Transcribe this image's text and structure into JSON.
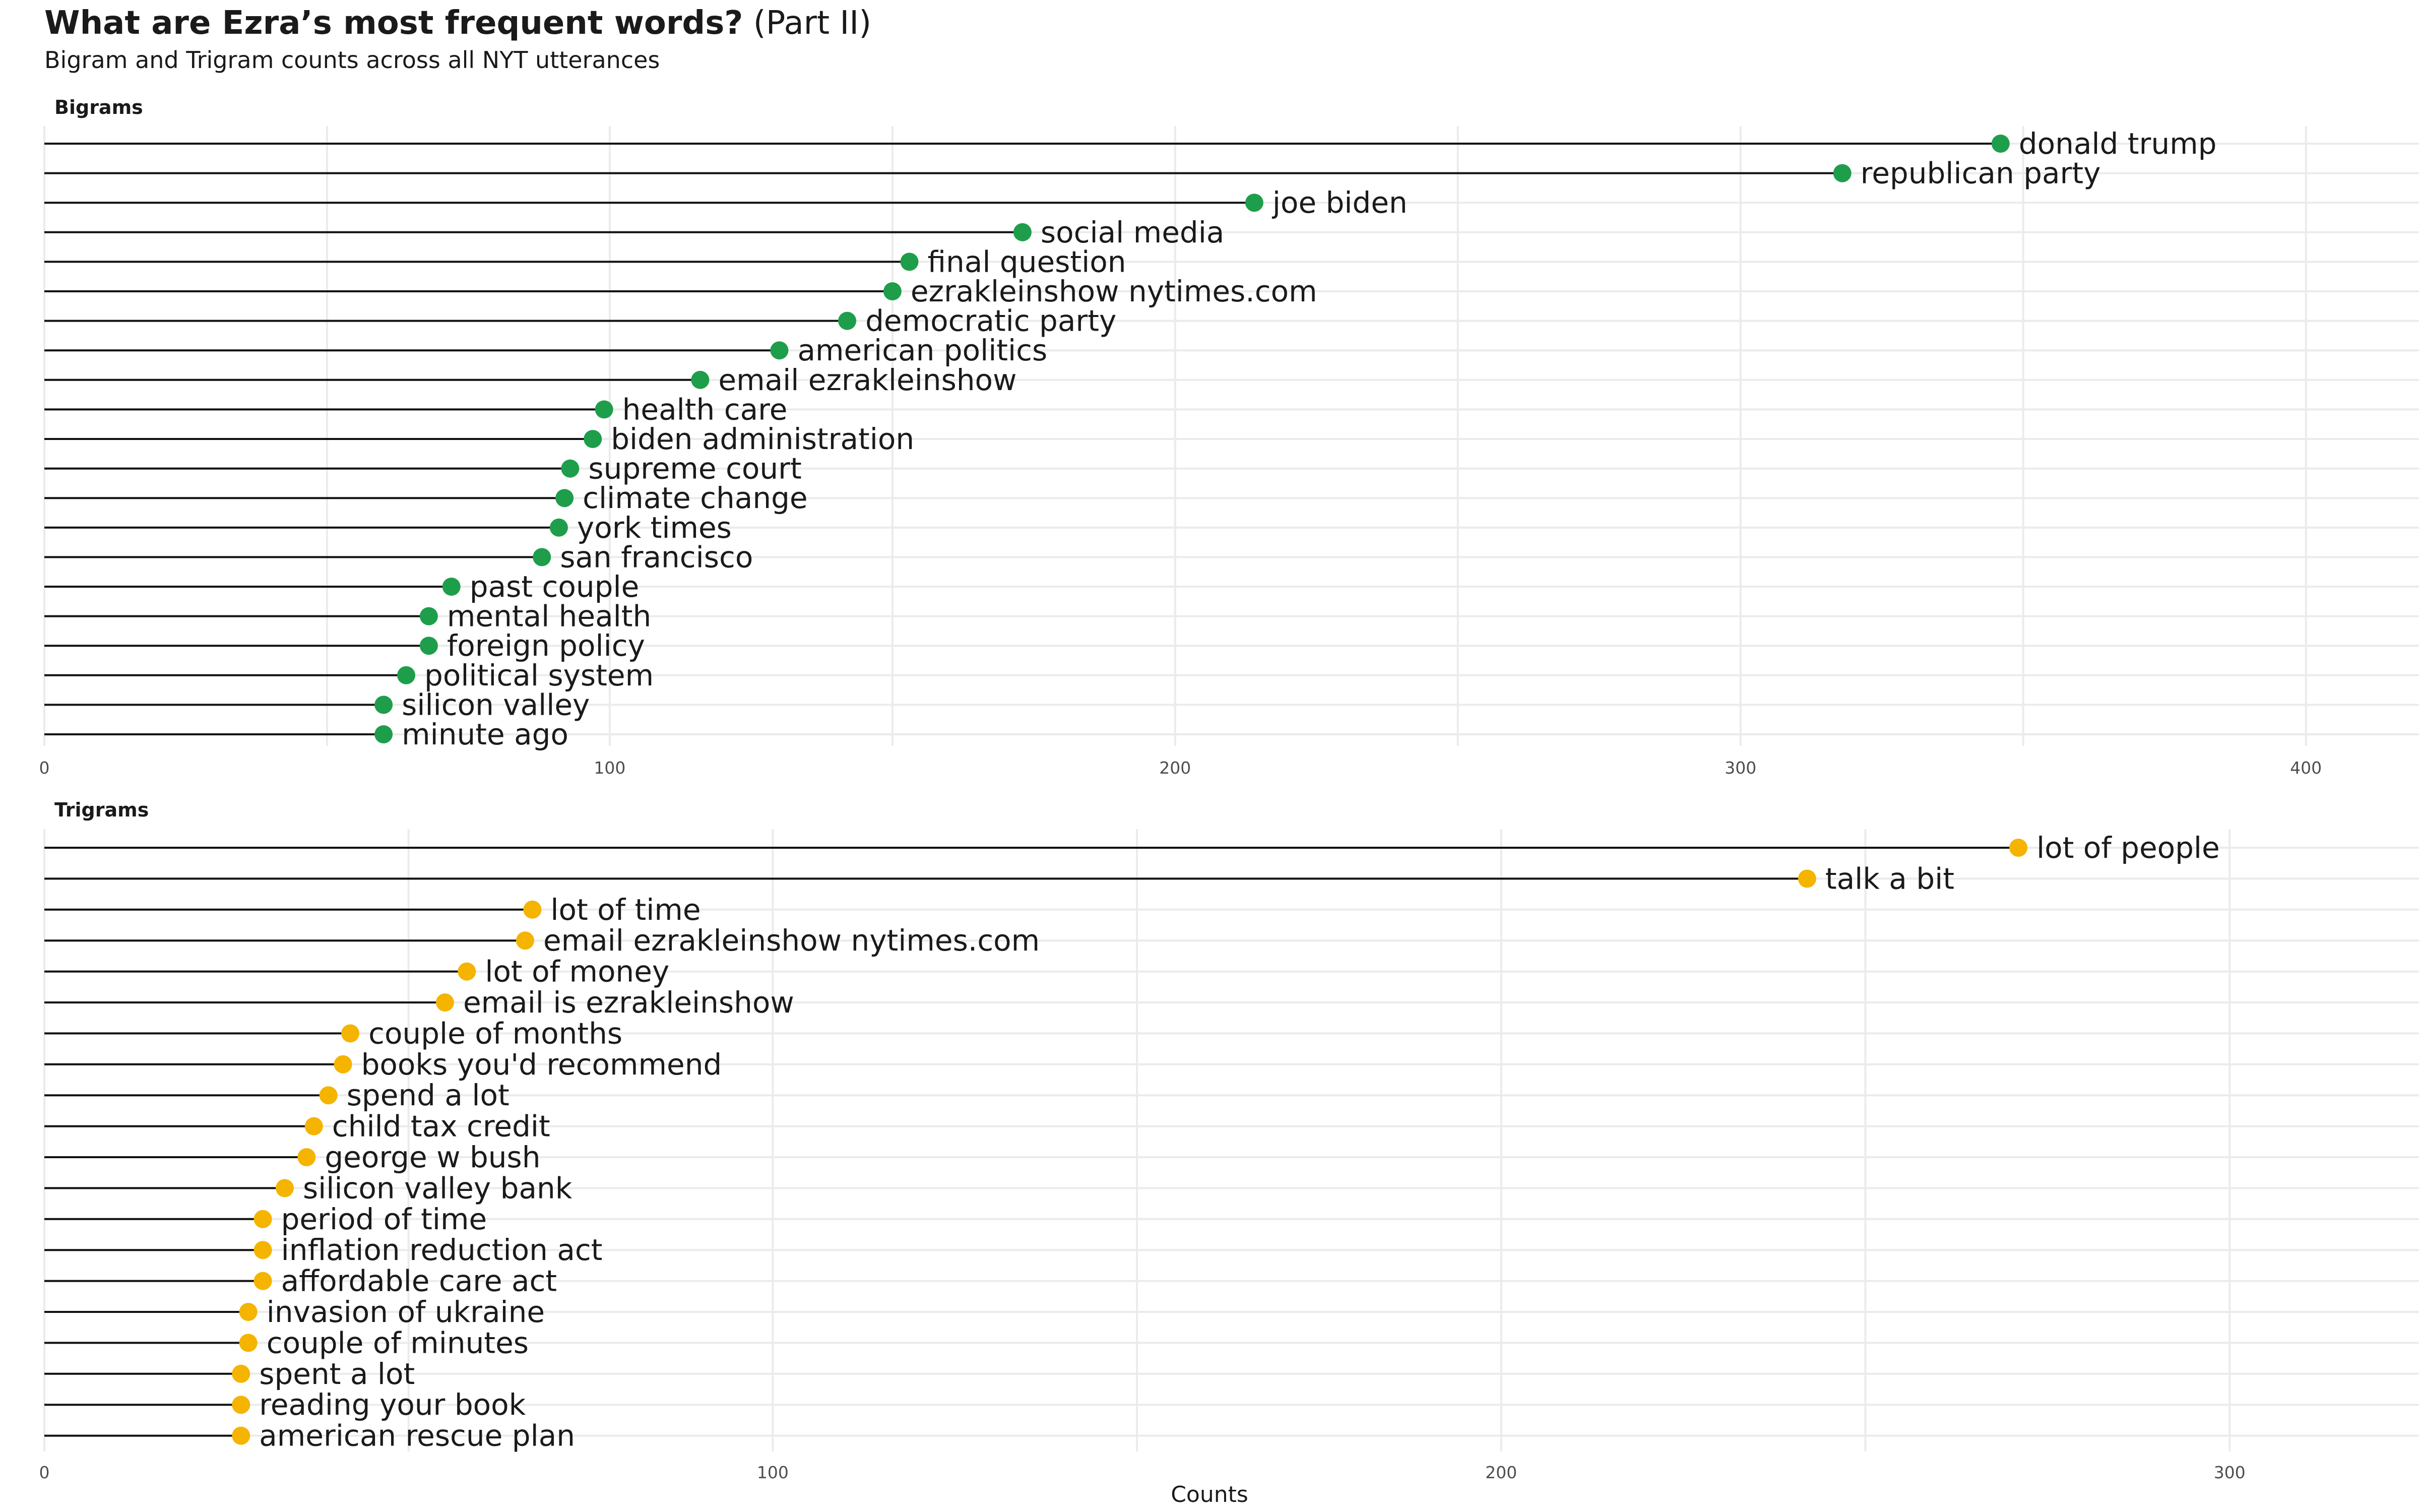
{
  "header": {
    "title_bold": "What are Ezra’s most frequent words?",
    "title_rest": " (Part II)",
    "subtitle": "Bigram and Trigram counts across all NYT utterances"
  },
  "colors": {
    "bigram_point": "#1e9e4a",
    "trigram_point": "#f4b400",
    "segment": "#111111",
    "grid": "#ebebeb"
  },
  "chart_data": {
    "type": "lollipop",
    "xlabel": "Counts",
    "grid": true,
    "panels": [
      {
        "name": "Bigrams",
        "xlim": [
          0,
          420
        ],
        "ticks": [
          0,
          100,
          200,
          300,
          400
        ],
        "color": "#1e9e4a",
        "categories": [
          "donald trump",
          "republican party",
          "joe biden",
          "social media",
          "final question",
          "ezrakleinshow nytimes.com",
          "democratic party",
          "american politics",
          "email ezrakleinshow",
          "health care",
          "biden administration",
          "supreme court",
          "climate change",
          "york times",
          "san francisco",
          "past couple",
          "mental health",
          "foreign policy",
          "political system",
          "silicon valley",
          "minute ago"
        ],
        "values": [
          346,
          318,
          214,
          173,
          153,
          150,
          142,
          130,
          116,
          99,
          97,
          93,
          92,
          91,
          88,
          72,
          68,
          68,
          64,
          60,
          60
        ]
      },
      {
        "name": "Trigrams",
        "xlim": [
          0,
          326
        ],
        "ticks": [
          0,
          100,
          200,
          300
        ],
        "color": "#f4b400",
        "categories": [
          "lot of people",
          "talk a bit",
          "lot of time",
          "email ezrakleinshow nytimes.com",
          "lot of money",
          "email is ezrakleinshow",
          "couple of months",
          "books you'd recommend",
          "spend a lot",
          "child tax credit",
          "george w bush",
          "silicon valley bank",
          "period of time",
          "inflation reduction act",
          "affordable care act",
          "invasion of ukraine",
          "couple of minutes",
          "spent a lot",
          "reading your book",
          "american rescue plan"
        ],
        "values": [
          271,
          242,
          67,
          66,
          58,
          55,
          42,
          41,
          39,
          37,
          36,
          33,
          30,
          30,
          30,
          28,
          28,
          27,
          27,
          27
        ]
      }
    ]
  }
}
